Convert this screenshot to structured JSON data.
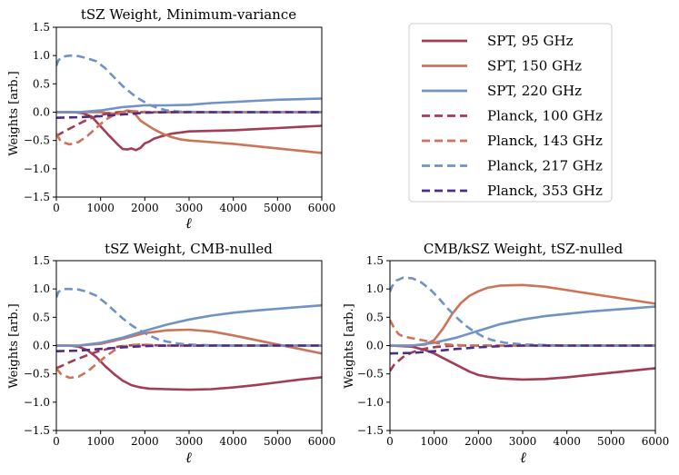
{
  "colors": {
    "SPT, 95 GHz": "#a33d55",
    "SPT, 150 GHz": "#cc7458",
    "SPT, 220 GHz": "#6f93c4",
    "Planck, 100 GHz": "#a33d55",
    "Planck, 143 GHz": "#cc7458",
    "Planck, 217 GHz": "#6f93c4",
    "Planck, 353 GHz": "#4e2d86"
  },
  "legend": {
    "placement": "right, above bottom-right panel",
    "entries": [
      {
        "label": "SPT, 95 GHz",
        "dashed": false
      },
      {
        "label": "SPT, 150 GHz",
        "dashed": false
      },
      {
        "label": "SPT, 220 GHz",
        "dashed": false
      },
      {
        "label": "Planck, 100 GHz",
        "dashed": true
      },
      {
        "label": "Planck, 143 GHz",
        "dashed": true
      },
      {
        "label": "Planck, 217 GHz",
        "dashed": true
      },
      {
        "label": "Planck, 353 GHz",
        "dashed": true
      }
    ]
  },
  "chart_data": [
    {
      "type": "line",
      "title": "tSZ Weight, Minimum-variance",
      "xlabel": "ℓ",
      "ylabel": "Weights [arb.]",
      "xlim": [
        0,
        6000
      ],
      "ylim": [
        -1.5,
        1.5
      ],
      "xticks": [
        0,
        1000,
        2000,
        3000,
        4000,
        5000,
        6000
      ],
      "yticks": [
        -1.5,
        -1.0,
        -0.5,
        0.0,
        0.5,
        1.0,
        1.5
      ],
      "ytick_labels": [
        "−1.5",
        "−1.0",
        "−0.5",
        "0.0",
        "0.5",
        "1.0",
        "1.5"
      ],
      "grid": false,
      "series": [
        {
          "name": "SPT, 95 GHz",
          "dashed": false,
          "x": [
            0,
            200,
            400,
            600,
            800,
            1000,
            1200,
            1400,
            1500,
            1600,
            1700,
            1800,
            1900,
            2000,
            2100,
            2200,
            2400,
            2600,
            2800,
            3000,
            3500,
            4000,
            4500,
            5000,
            5500,
            6000
          ],
          "y": [
            0.0,
            0.0,
            0.0,
            -0.02,
            -0.08,
            -0.25,
            -0.42,
            -0.58,
            -0.65,
            -0.66,
            -0.64,
            -0.67,
            -0.63,
            -0.55,
            -0.52,
            -0.47,
            -0.42,
            -0.38,
            -0.36,
            -0.34,
            -0.33,
            -0.32,
            -0.3,
            -0.28,
            -0.26,
            -0.24
          ]
        },
        {
          "name": "SPT, 150 GHz",
          "dashed": false,
          "x": [
            0,
            400,
            800,
            1000,
            1200,
            1400,
            1500,
            1600,
            1700,
            1800,
            1900,
            2000,
            2100,
            2200,
            2400,
            2600,
            2800,
            3000,
            3500,
            4000,
            4500,
            5000,
            5500,
            6000
          ],
          "y": [
            0.0,
            0.0,
            0.0,
            0.0,
            -0.02,
            -0.03,
            0.0,
            0.03,
            0.02,
            -0.05,
            -0.15,
            -0.2,
            -0.25,
            -0.3,
            -0.38,
            -0.44,
            -0.48,
            -0.5,
            -0.53,
            -0.56,
            -0.6,
            -0.64,
            -0.68,
            -0.72
          ]
        },
        {
          "name": "SPT, 220 GHz",
          "dashed": false,
          "x": [
            0,
            500,
            1000,
            1500,
            2000,
            2500,
            3000,
            3500,
            4000,
            4500,
            5000,
            5500,
            6000
          ],
          "y": [
            0.0,
            0.0,
            0.03,
            0.09,
            0.12,
            0.12,
            0.13,
            0.16,
            0.18,
            0.2,
            0.22,
            0.23,
            0.24
          ]
        },
        {
          "name": "Planck, 100 GHz",
          "dashed": true,
          "x": [
            0,
            200,
            400,
            600,
            800,
            1000,
            1200,
            1400,
            1600,
            1800,
            2000,
            2500,
            3000,
            6000
          ],
          "y": [
            -0.42,
            -0.33,
            -0.25,
            -0.17,
            -0.1,
            -0.05,
            -0.02,
            0.0,
            0.01,
            0.0,
            0.0,
            0.0,
            0.0,
            0.0
          ]
        },
        {
          "name": "Planck, 143 GHz",
          "dashed": true,
          "x": [
            0,
            100,
            300,
            500,
            700,
            900,
            1100,
            1300,
            1500,
            1700,
            1900,
            2200,
            2500,
            3000,
            6000
          ],
          "y": [
            -0.38,
            -0.52,
            -0.57,
            -0.53,
            -0.42,
            -0.28,
            -0.14,
            -0.05,
            0.0,
            0.02,
            0.01,
            0.0,
            0.0,
            0.0,
            0.0
          ]
        },
        {
          "name": "Planck, 217 GHz",
          "dashed": true,
          "x": [
            0,
            50,
            150,
            300,
            500,
            700,
            900,
            1100,
            1300,
            1500,
            1700,
            1900,
            2100,
            2300,
            2500,
            2800,
            3200,
            4000,
            6000
          ],
          "y": [
            0.82,
            0.92,
            0.98,
            1.0,
            0.99,
            0.95,
            0.9,
            0.78,
            0.62,
            0.46,
            0.33,
            0.22,
            0.13,
            0.07,
            0.03,
            0.01,
            0.0,
            0.0,
            0.0
          ]
        },
        {
          "name": "Planck, 353 GHz",
          "dashed": true,
          "x": [
            0,
            500,
            1000,
            1500,
            2000,
            2500,
            3000,
            6000
          ],
          "y": [
            -0.1,
            -0.09,
            -0.07,
            -0.04,
            -0.01,
            0.0,
            0.0,
            0.0
          ]
        }
      ]
    },
    {
      "type": "line",
      "title": "tSZ Weight, CMB-nulled",
      "xlabel": "ℓ",
      "ylabel": "Weights [arb.]",
      "xlim": [
        0,
        6000
      ],
      "ylim": [
        -1.5,
        1.5
      ],
      "xticks": [
        0,
        1000,
        2000,
        3000,
        4000,
        5000,
        6000
      ],
      "yticks": [
        -1.5,
        -1.0,
        -0.5,
        0.0,
        0.5,
        1.0,
        1.5
      ],
      "ytick_labels": [
        "−1.5",
        "−1.0",
        "−0.5",
        "0.0",
        "0.5",
        "1.0",
        "1.5"
      ],
      "grid": false,
      "series": [
        {
          "name": "SPT, 95 GHz",
          "dashed": false,
          "x": [
            0,
            300,
            500,
            700,
            900,
            1100,
            1300,
            1500,
            1700,
            1900,
            2100,
            2500,
            3000,
            3500,
            4000,
            4500,
            5000,
            5500,
            6000
          ],
          "y": [
            0.0,
            0.0,
            -0.02,
            -0.08,
            -0.2,
            -0.36,
            -0.5,
            -0.62,
            -0.7,
            -0.74,
            -0.76,
            -0.77,
            -0.78,
            -0.77,
            -0.74,
            -0.7,
            -0.65,
            -0.6,
            -0.56
          ]
        },
        {
          "name": "SPT, 150 GHz",
          "dashed": false,
          "x": [
            0,
            500,
            1000,
            1500,
            2000,
            2500,
            3000,
            3500,
            4000,
            4500,
            5000,
            5500,
            6000
          ],
          "y": [
            0.0,
            0.0,
            0.03,
            0.12,
            0.22,
            0.27,
            0.28,
            0.25,
            0.18,
            0.1,
            0.02,
            -0.06,
            -0.14
          ]
        },
        {
          "name": "SPT, 220 GHz",
          "dashed": false,
          "x": [
            0,
            500,
            1000,
            1500,
            2000,
            2500,
            3000,
            3500,
            4000,
            4500,
            5000,
            5500,
            6000
          ],
          "y": [
            0.0,
            0.0,
            0.05,
            0.14,
            0.26,
            0.37,
            0.46,
            0.53,
            0.58,
            0.62,
            0.65,
            0.68,
            0.71
          ]
        },
        {
          "name": "Planck, 100 GHz",
          "dashed": true,
          "x": [
            0,
            200,
            400,
            600,
            800,
            1000,
            1200,
            1400,
            1600,
            1800,
            2000,
            2500,
            3000,
            6000
          ],
          "y": [
            -0.4,
            -0.33,
            -0.26,
            -0.2,
            -0.14,
            -0.09,
            -0.05,
            -0.02,
            0.0,
            0.01,
            0.01,
            0.0,
            0.0,
            0.0
          ]
        },
        {
          "name": "Planck, 143 GHz",
          "dashed": true,
          "x": [
            0,
            100,
            300,
            500,
            700,
            900,
            1100,
            1300,
            1500,
            1700,
            1900,
            2200,
            2500,
            3000,
            6000
          ],
          "y": [
            -0.4,
            -0.5,
            -0.57,
            -0.55,
            -0.46,
            -0.33,
            -0.2,
            -0.09,
            -0.02,
            0.01,
            0.02,
            0.01,
            0.0,
            0.0,
            0.0
          ]
        },
        {
          "name": "Planck, 217 GHz",
          "dashed": true,
          "x": [
            0,
            50,
            150,
            300,
            500,
            700,
            900,
            1100,
            1300,
            1500,
            1700,
            1900,
            2100,
            2300,
            2500,
            2800,
            3200,
            4000,
            6000
          ],
          "y": [
            0.85,
            0.95,
            1.0,
            1.0,
            0.99,
            0.95,
            0.88,
            0.76,
            0.62,
            0.48,
            0.36,
            0.26,
            0.18,
            0.11,
            0.07,
            0.03,
            0.01,
            0.0,
            0.0
          ]
        },
        {
          "name": "Planck, 353 GHz",
          "dashed": true,
          "x": [
            0,
            500,
            1000,
            1500,
            2000,
            2500,
            3000,
            6000
          ],
          "y": [
            -0.1,
            -0.09,
            -0.06,
            -0.03,
            -0.01,
            0.0,
            0.0,
            0.0
          ]
        }
      ]
    },
    {
      "type": "line",
      "title": "CMB/kSZ Weight, tSZ-nulled",
      "xlabel": "ℓ",
      "ylabel": "Weights [arb.]",
      "xlim": [
        0,
        6000
      ],
      "ylim": [
        -1.5,
        1.5
      ],
      "xticks": [
        0,
        1000,
        2000,
        3000,
        4000,
        5000,
        6000
      ],
      "yticks": [
        -1.5,
        -1.0,
        -0.5,
        0.0,
        0.5,
        1.0,
        1.5
      ],
      "ytick_labels": [
        "−1.5",
        "−1.0",
        "−0.5",
        "0.0",
        "0.5",
        "1.0",
        "1.5"
      ],
      "grid": false,
      "series": [
        {
          "name": "SPT, 95 GHz",
          "dashed": false,
          "x": [
            0,
            500,
            800,
            1000,
            1200,
            1400,
            1600,
            1800,
            2000,
            2200,
            2500,
            3000,
            3500,
            4000,
            4500,
            5000,
            5500,
            6000
          ],
          "y": [
            0.0,
            -0.02,
            -0.08,
            -0.14,
            -0.22,
            -0.3,
            -0.38,
            -0.46,
            -0.52,
            -0.55,
            -0.58,
            -0.6,
            -0.59,
            -0.56,
            -0.52,
            -0.48,
            -0.44,
            -0.4
          ]
        },
        {
          "name": "SPT, 150 GHz",
          "dashed": false,
          "x": [
            0,
            500,
            800,
            1000,
            1200,
            1400,
            1600,
            1800,
            2000,
            2200,
            2500,
            3000,
            3500,
            4000,
            4500,
            5000,
            5500,
            6000
          ],
          "y": [
            0.0,
            0.0,
            0.02,
            0.1,
            0.3,
            0.55,
            0.75,
            0.88,
            0.96,
            1.02,
            1.06,
            1.07,
            1.04,
            0.98,
            0.92,
            0.86,
            0.8,
            0.74
          ]
        },
        {
          "name": "SPT, 220 GHz",
          "dashed": false,
          "x": [
            0,
            500,
            1000,
            1500,
            2000,
            2500,
            3000,
            3500,
            4000,
            4500,
            5000,
            5500,
            6000
          ],
          "y": [
            0.0,
            0.0,
            0.05,
            0.14,
            0.26,
            0.38,
            0.46,
            0.52,
            0.56,
            0.6,
            0.63,
            0.66,
            0.69
          ]
        },
        {
          "name": "Planck, 100 GHz",
          "dashed": true,
          "x": [
            0,
            100,
            300,
            500,
            700,
            900,
            1100,
            1300,
            1500,
            1800,
            2200,
            3000,
            6000
          ],
          "y": [
            -0.45,
            -0.33,
            -0.2,
            -0.12,
            -0.07,
            -0.04,
            -0.02,
            -0.01,
            0.0,
            0.0,
            0.0,
            0.0,
            0.0
          ]
        },
        {
          "name": "Planck, 143 GHz",
          "dashed": true,
          "x": [
            0,
            100,
            200,
            300,
            500,
            700,
            900,
            1100,
            1300,
            1500,
            1800,
            2200,
            3000,
            6000
          ],
          "y": [
            0.45,
            0.3,
            0.2,
            0.16,
            0.13,
            0.1,
            0.07,
            0.04,
            0.02,
            0.01,
            0.0,
            0.0,
            0.0,
            0.0
          ]
        },
        {
          "name": "Planck, 217 GHz",
          "dashed": true,
          "x": [
            0,
            50,
            150,
            300,
            500,
            700,
            900,
            1100,
            1300,
            1500,
            1700,
            1900,
            2100,
            2300,
            2600,
            3000,
            3500,
            4000,
            6000
          ],
          "y": [
            0.95,
            1.05,
            1.15,
            1.2,
            1.19,
            1.12,
            1.0,
            0.84,
            0.66,
            0.5,
            0.36,
            0.25,
            0.16,
            0.1,
            0.05,
            0.02,
            0.01,
            0.0,
            0.0
          ]
        },
        {
          "name": "Planck, 353 GHz",
          "dashed": true,
          "x": [
            0,
            500,
            1000,
            1500,
            2000,
            2500,
            3000,
            6000
          ],
          "y": [
            -0.14,
            -0.13,
            -0.1,
            -0.06,
            -0.03,
            -0.01,
            0.0,
            0.0
          ]
        }
      ]
    }
  ]
}
